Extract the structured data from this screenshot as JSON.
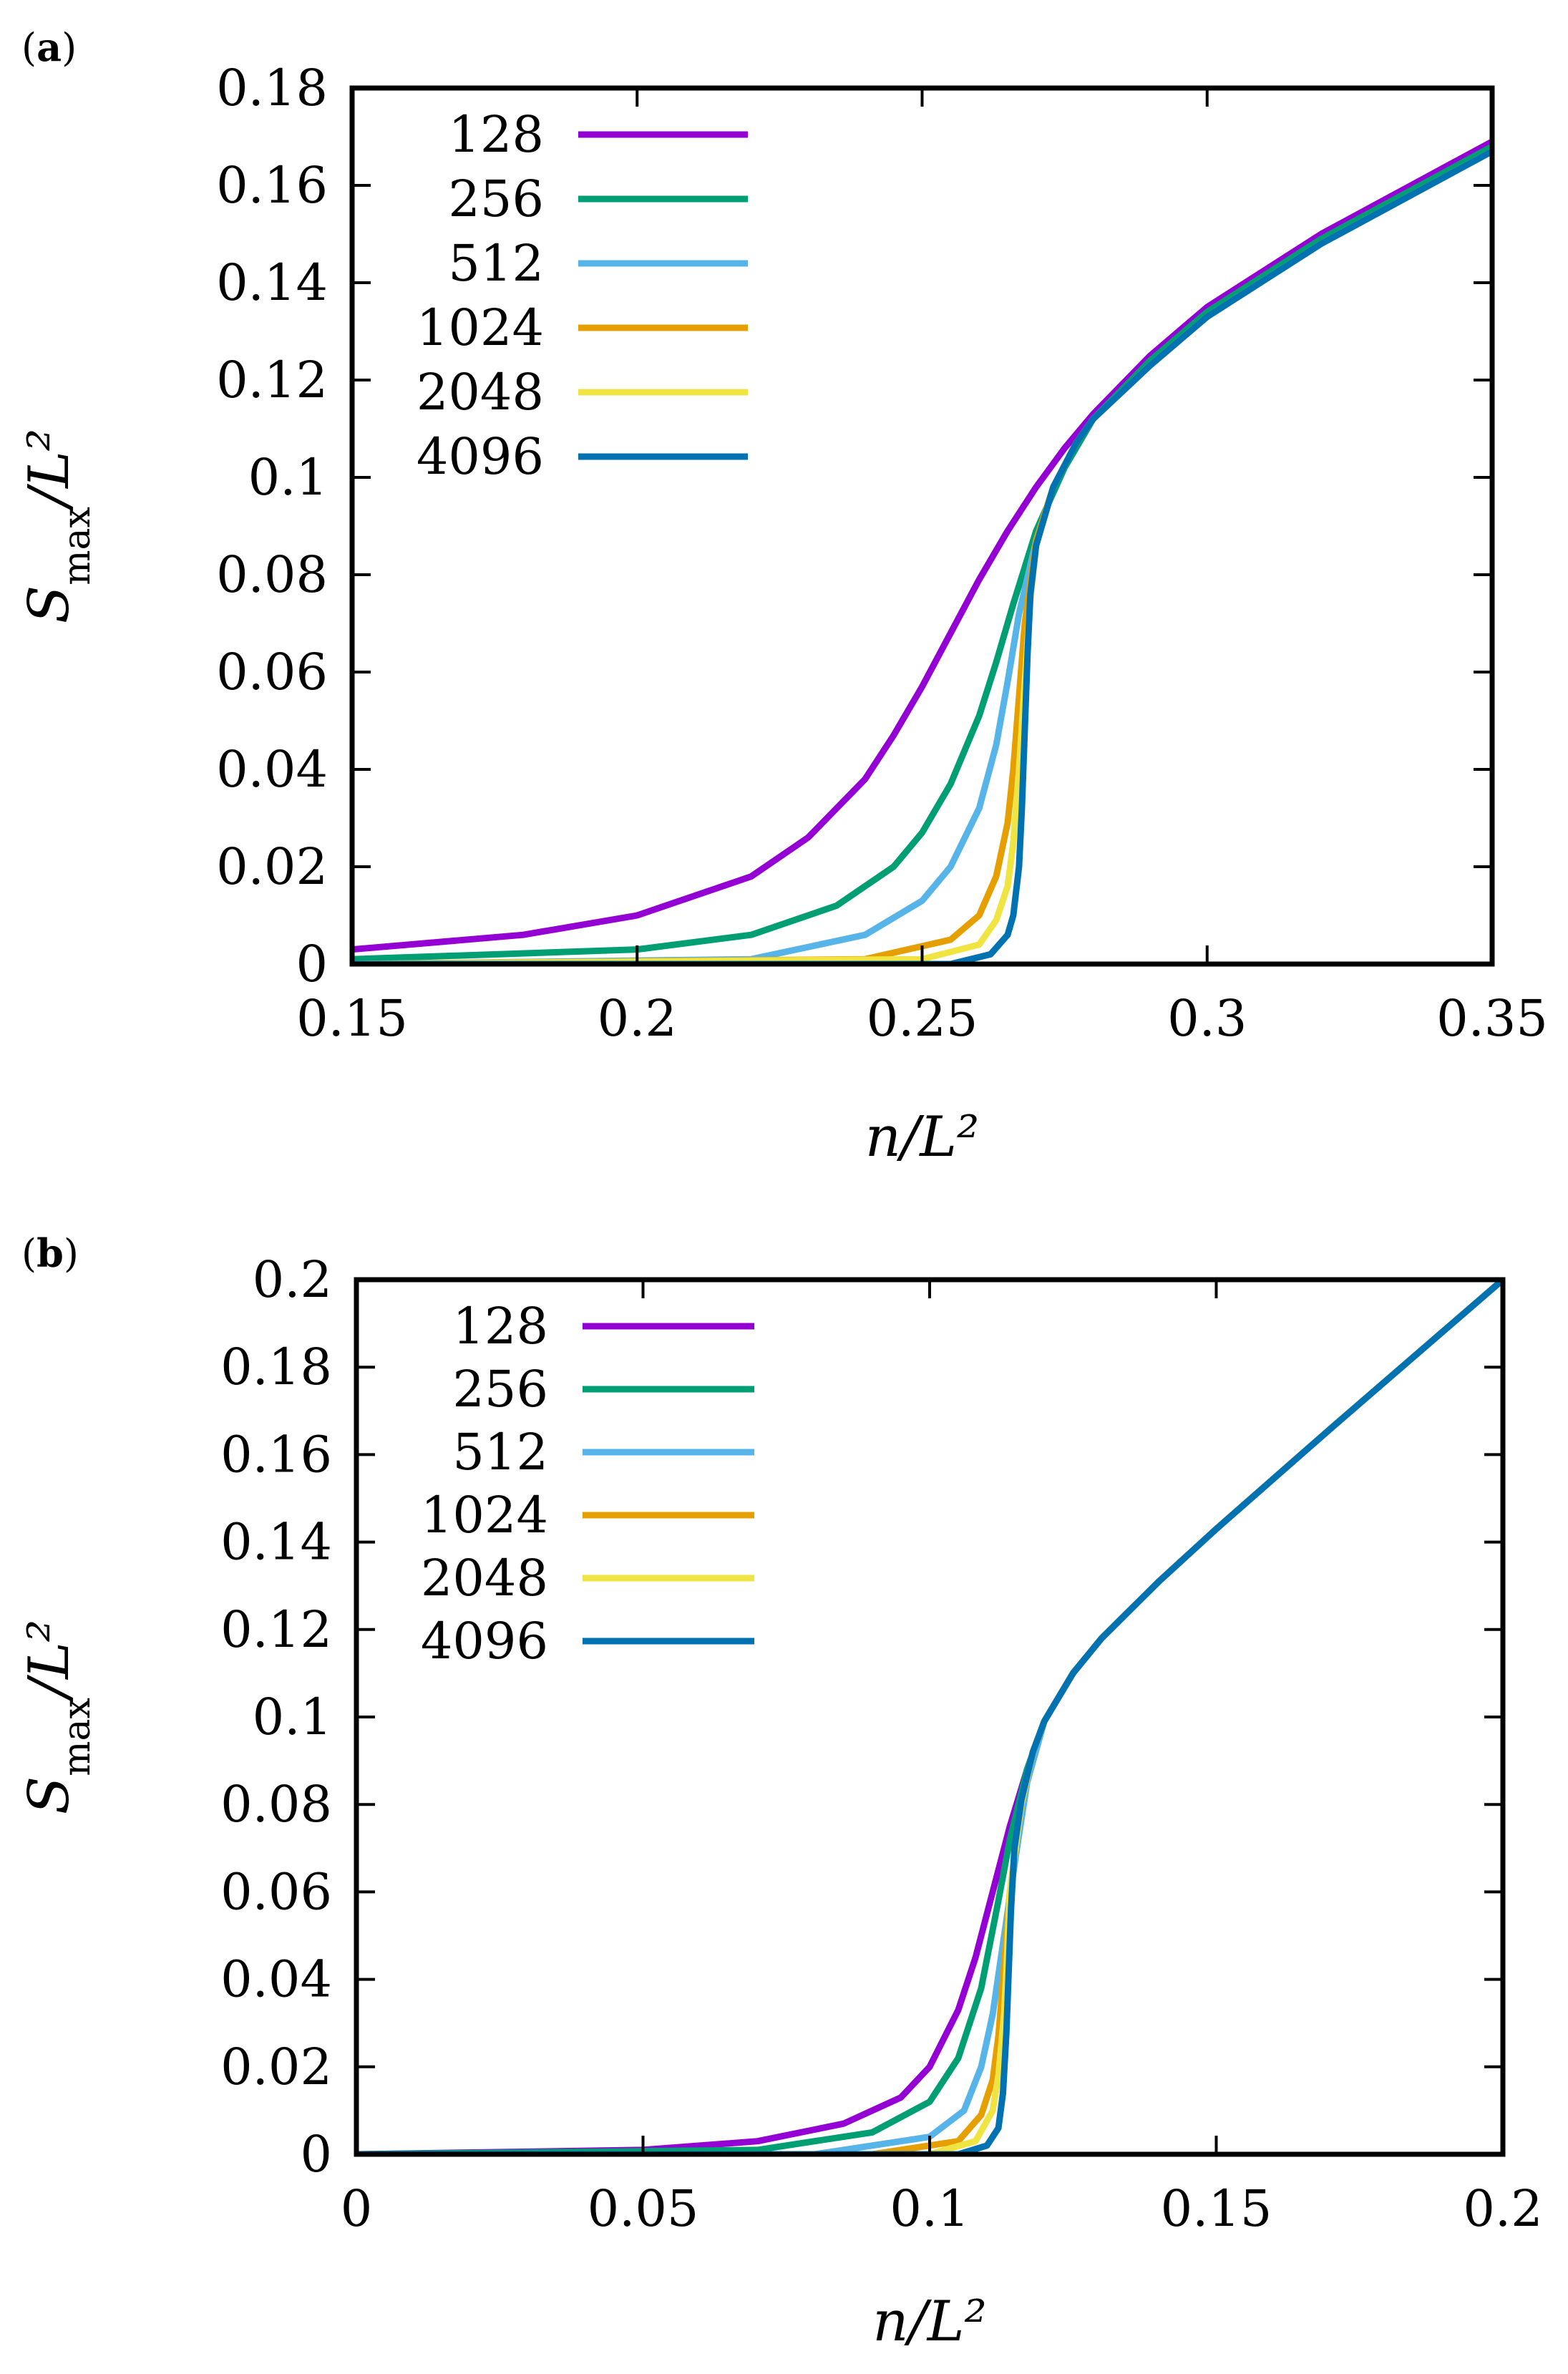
{
  "chart_data": [
    {
      "type": "line",
      "panel_label": "(a)",
      "panel_letter": "a",
      "xlabel": "n/L²",
      "ylabel": "S_max/L²",
      "xlim": [
        0.15,
        0.35
      ],
      "ylim": [
        0,
        0.18
      ],
      "xticks": [
        0.15,
        0.2,
        0.25,
        0.3,
        0.35
      ],
      "yticks": [
        0,
        0.02,
        0.04,
        0.06,
        0.08,
        0.1,
        0.12,
        0.14,
        0.16,
        0.18
      ],
      "xtick_labels": [
        "0.15",
        "0.2",
        "0.25",
        "0.3",
        "0.35"
      ],
      "ytick_labels": [
        "0",
        "0.02",
        "0.04",
        "0.06",
        "0.08",
        "0.1",
        "0.12",
        "0.14",
        "0.16",
        "0.18"
      ],
      "legend_position": "top-left",
      "series": [
        {
          "name": "128",
          "color": "#9400d3",
          "x": [
            0.15,
            0.18,
            0.2,
            0.22,
            0.23,
            0.24,
            0.245,
            0.25,
            0.255,
            0.26,
            0.265,
            0.27,
            0.275,
            0.28,
            0.29,
            0.3,
            0.32,
            0.35
          ],
          "y": [
            0.003,
            0.006,
            0.01,
            0.018,
            0.026,
            0.038,
            0.047,
            0.057,
            0.068,
            0.079,
            0.089,
            0.098,
            0.106,
            0.113,
            0.125,
            0.135,
            0.15,
            0.169
          ]
        },
        {
          "name": "256",
          "color": "#009e73",
          "x": [
            0.15,
            0.2,
            0.22,
            0.235,
            0.245,
            0.25,
            0.255,
            0.26,
            0.263,
            0.266,
            0.27,
            0.275,
            0.28,
            0.29,
            0.3,
            0.32,
            0.35
          ],
          "y": [
            0.001,
            0.003,
            0.006,
            0.012,
            0.02,
            0.027,
            0.037,
            0.051,
            0.062,
            0.074,
            0.089,
            0.102,
            0.112,
            0.124,
            0.134,
            0.149,
            0.168
          ]
        },
        {
          "name": "512",
          "color": "#56b4e9",
          "x": [
            0.15,
            0.22,
            0.24,
            0.25,
            0.255,
            0.26,
            0.263,
            0.265,
            0.267,
            0.27,
            0.273,
            0.277,
            0.28,
            0.29,
            0.3,
            0.32,
            0.35
          ],
          "y": [
            0.0,
            0.001,
            0.006,
            0.013,
            0.02,
            0.032,
            0.045,
            0.058,
            0.072,
            0.087,
            0.098,
            0.107,
            0.112,
            0.123,
            0.133,
            0.148,
            0.167
          ]
        },
        {
          "name": "1024",
          "color": "#e69f00",
          "x": [
            0.15,
            0.24,
            0.255,
            0.26,
            0.263,
            0.265,
            0.266,
            0.267,
            0.268,
            0.27,
            0.273,
            0.277,
            0.28,
            0.29,
            0.3,
            0.32,
            0.35
          ],
          "y": [
            0.0,
            0.001,
            0.005,
            0.01,
            0.018,
            0.029,
            0.04,
            0.055,
            0.07,
            0.087,
            0.098,
            0.107,
            0.112,
            0.123,
            0.133,
            0.148,
            0.167
          ]
        },
        {
          "name": "2048",
          "color": "#f0e442",
          "x": [
            0.15,
            0.25,
            0.26,
            0.263,
            0.265,
            0.266,
            0.267,
            0.268,
            0.269,
            0.27,
            0.273,
            0.277,
            0.28,
            0.29,
            0.3,
            0.32,
            0.35
          ],
          "y": [
            0.0,
            0.001,
            0.004,
            0.009,
            0.016,
            0.025,
            0.04,
            0.058,
            0.075,
            0.086,
            0.098,
            0.107,
            0.112,
            0.123,
            0.133,
            0.148,
            0.167
          ]
        },
        {
          "name": "4096",
          "color": "#0072b2",
          "x": [
            0.15,
            0.255,
            0.262,
            0.265,
            0.266,
            0.267,
            0.2675,
            0.268,
            0.2685,
            0.269,
            0.27,
            0.273,
            0.277,
            0.28,
            0.29,
            0.3,
            0.32,
            0.35
          ],
          "y": [
            0.0,
            0.0,
            0.002,
            0.006,
            0.01,
            0.02,
            0.032,
            0.048,
            0.064,
            0.076,
            0.086,
            0.098,
            0.107,
            0.112,
            0.123,
            0.133,
            0.148,
            0.167
          ]
        }
      ]
    },
    {
      "type": "line",
      "panel_label": "(b)",
      "panel_letter": "b",
      "xlabel": "n/L²",
      "ylabel": "S_max/L²",
      "xlim": [
        0,
        0.2
      ],
      "ylim": [
        0,
        0.2
      ],
      "xticks": [
        0,
        0.05,
        0.1,
        0.15,
        0.2
      ],
      "yticks": [
        0,
        0.02,
        0.04,
        0.06,
        0.08,
        0.1,
        0.12,
        0.14,
        0.16,
        0.18,
        0.2
      ],
      "xtick_labels": [
        "0",
        "0.05",
        "0.1",
        "0.15",
        "0.2"
      ],
      "ytick_labels": [
        "0",
        "0.02",
        "0.04",
        "0.06",
        "0.08",
        "0.1",
        "0.12",
        "0.14",
        "0.16",
        "0.18",
        "0.2"
      ],
      "legend_position": "top-left",
      "series": [
        {
          "name": "128",
          "color": "#9400d3",
          "x": [
            0,
            0.05,
            0.07,
            0.085,
            0.095,
            0.1,
            0.105,
            0.108,
            0.111,
            0.114,
            0.117,
            0.12,
            0.125,
            0.13,
            0.14,
            0.15,
            0.17,
            0.2
          ],
          "y": [
            0,
            0.001,
            0.003,
            0.007,
            0.013,
            0.02,
            0.033,
            0.045,
            0.06,
            0.075,
            0.088,
            0.099,
            0.11,
            0.118,
            0.131,
            0.143,
            0.166,
            0.2
          ]
        },
        {
          "name": "256",
          "color": "#009e73",
          "x": [
            0,
            0.07,
            0.09,
            0.1,
            0.105,
            0.109,
            0.112,
            0.114,
            0.117,
            0.12,
            0.125,
            0.13,
            0.14,
            0.15,
            0.17,
            0.2
          ],
          "y": [
            0,
            0.001,
            0.005,
            0.012,
            0.022,
            0.038,
            0.058,
            0.072,
            0.088,
            0.099,
            0.11,
            0.118,
            0.131,
            0.143,
            0.166,
            0.2
          ]
        },
        {
          "name": "512",
          "color": "#56b4e9",
          "x": [
            0,
            0.08,
            0.1,
            0.106,
            0.109,
            0.111,
            0.113,
            0.115,
            0.117,
            0.12,
            0.125,
            0.13,
            0.14,
            0.15,
            0.17,
            0.2
          ],
          "y": [
            0,
            0.0,
            0.004,
            0.01,
            0.02,
            0.032,
            0.05,
            0.068,
            0.085,
            0.099,
            0.11,
            0.118,
            0.131,
            0.143,
            0.166,
            0.2
          ]
        },
        {
          "name": "1024",
          "color": "#e69f00",
          "x": [
            0,
            0.09,
            0.105,
            0.109,
            0.111,
            0.112,
            0.113,
            0.114,
            0.116,
            0.118,
            0.12,
            0.125,
            0.13,
            0.14,
            0.15,
            0.17,
            0.2
          ],
          "y": [
            0,
            0.0,
            0.003,
            0.009,
            0.017,
            0.027,
            0.043,
            0.06,
            0.08,
            0.092,
            0.099,
            0.11,
            0.118,
            0.131,
            0.143,
            0.166,
            0.2
          ]
        },
        {
          "name": "2048",
          "color": "#f0e442",
          "x": [
            0,
            0.1,
            0.108,
            0.111,
            0.112,
            0.113,
            0.1135,
            0.114,
            0.116,
            0.118,
            0.12,
            0.125,
            0.13,
            0.14,
            0.15,
            0.17,
            0.2
          ],
          "y": [
            0,
            0.0,
            0.003,
            0.01,
            0.018,
            0.032,
            0.045,
            0.06,
            0.08,
            0.092,
            0.099,
            0.11,
            0.118,
            0.131,
            0.143,
            0.166,
            0.2
          ]
        },
        {
          "name": "4096",
          "color": "#0072b2",
          "x": [
            0,
            0.105,
            0.11,
            0.112,
            0.1128,
            0.1134,
            0.1138,
            0.1142,
            0.1148,
            0.116,
            0.118,
            0.12,
            0.125,
            0.13,
            0.14,
            0.15,
            0.17,
            0.2
          ],
          "y": [
            0,
            0.0,
            0.002,
            0.006,
            0.014,
            0.028,
            0.042,
            0.056,
            0.07,
            0.081,
            0.092,
            0.099,
            0.11,
            0.118,
            0.131,
            0.143,
            0.166,
            0.2
          ]
        }
      ]
    }
  ]
}
